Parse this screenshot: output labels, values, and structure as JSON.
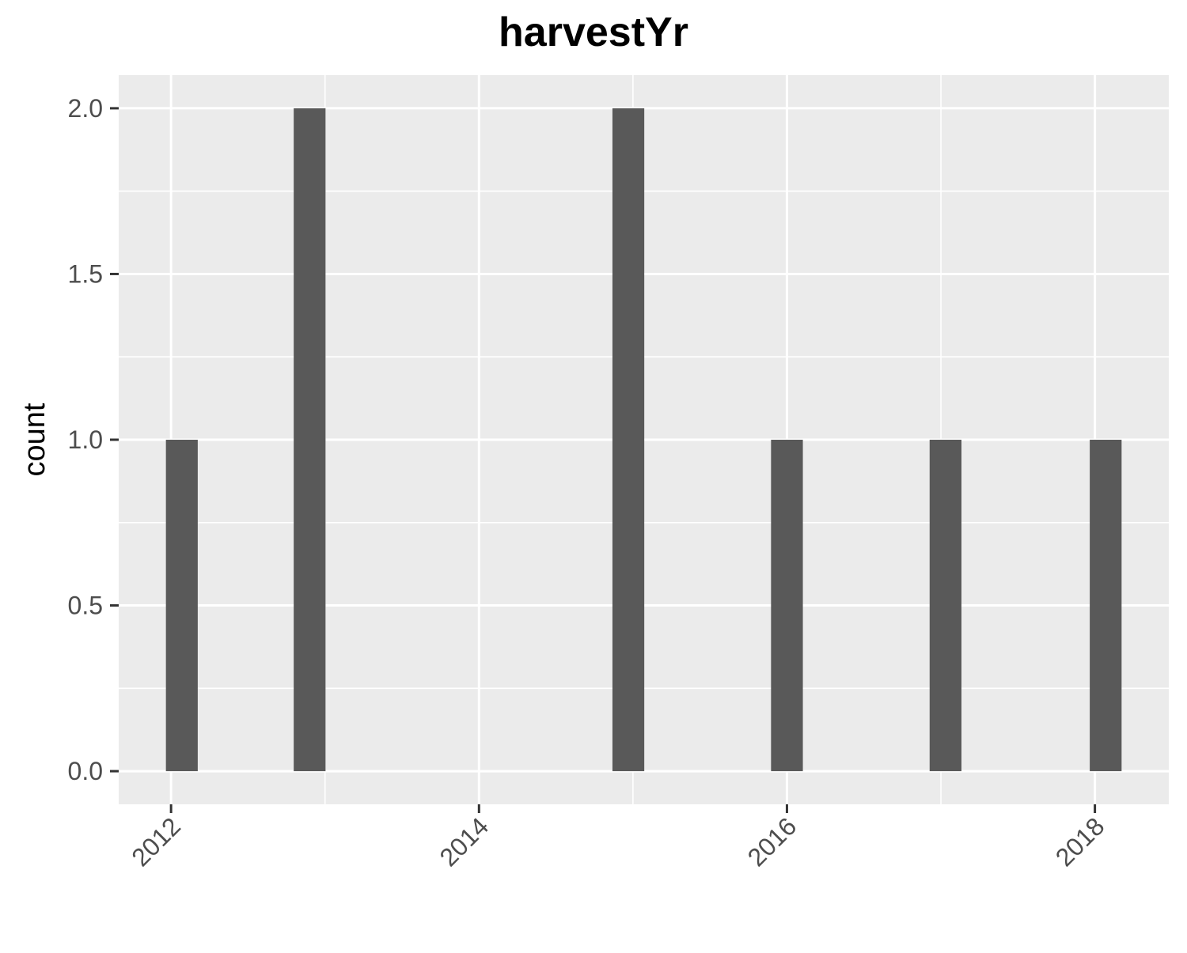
{
  "chart_data": {
    "type": "bar",
    "title": "harvestYr",
    "xlabel": "",
    "ylabel": "count",
    "x_ticks": [
      "2012",
      "2014",
      "2016",
      "2018"
    ],
    "y_ticks": [
      "0.0",
      "0.5",
      "1.0",
      "1.5",
      "2.0"
    ],
    "x_tick_values": [
      2012,
      2014,
      2016,
      2018
    ],
    "y_tick_values": [
      0,
      0.5,
      1.0,
      1.5,
      2.0
    ],
    "x": [
      2012.07,
      2012.9,
      2014.97,
      2016.0,
      2017.03,
      2018.07
    ],
    "values": [
      1,
      2,
      2,
      1,
      1,
      1
    ],
    "bin_width": 0.2067,
    "xlim": [
      2011.66,
      2018.48
    ],
    "ylim": [
      -0.1,
      2.1
    ],
    "grid": true,
    "x_tick_rotation_deg": -45,
    "colors": {
      "panel_background": "#ebebeb",
      "grid_line": "#ffffff",
      "bar_fill": "#595959",
      "tick_mark": "#333333"
    }
  }
}
